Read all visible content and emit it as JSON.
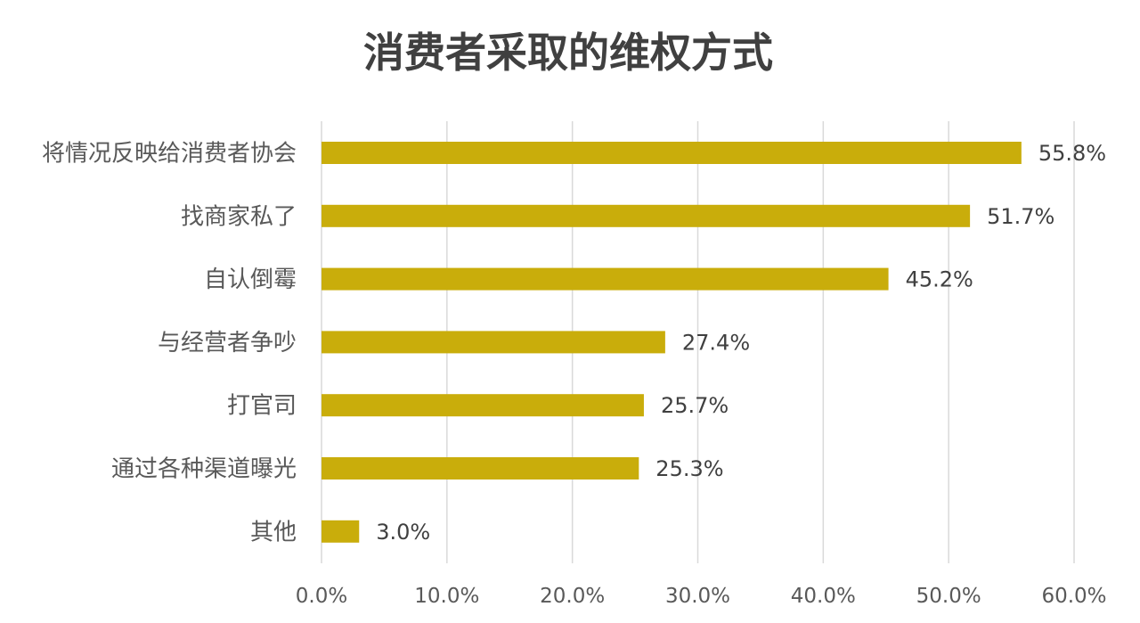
{
  "chart_data": {
    "type": "bar",
    "orientation": "horizontal",
    "title": "消费者采取的维权方式",
    "xlabel": "",
    "ylabel": "",
    "categories": [
      "将情况反映给消费者协会",
      "找商家私了",
      "自认倒霉",
      "与经营者争吵",
      "打官司",
      "通过各种渠道曝光",
      "其他"
    ],
    "values": [
      55.8,
      51.7,
      45.2,
      27.4,
      25.7,
      25.3,
      3.0
    ],
    "value_labels": [
      "55.8%",
      "51.7%",
      "45.2%",
      "27.4%",
      "25.7%",
      "25.3%",
      "3.0%"
    ],
    "xlim": [
      0,
      60
    ],
    "x_ticks": [
      0,
      10,
      20,
      30,
      40,
      50,
      60
    ],
    "x_tick_labels": [
      "0.0%",
      "10.0%",
      "20.0%",
      "30.0%",
      "40.0%",
      "50.0%",
      "60.0%"
    ],
    "grid": true,
    "legend": "none",
    "bar_color": "#c9ad0b",
    "grid_color": "#d9d9d9"
  }
}
